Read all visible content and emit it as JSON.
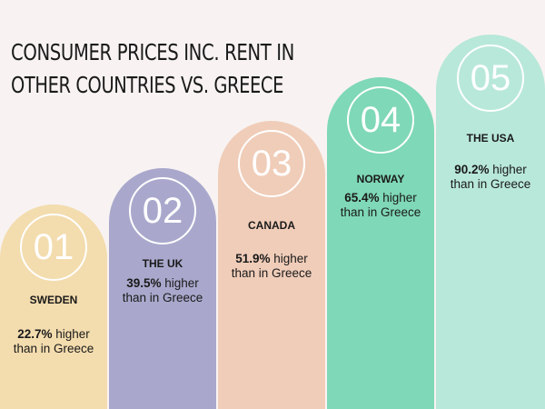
{
  "title": [
    "CONSUMER PRICES INC. RENT IN",
    "OTHER COUNTRIES VS. GREECE"
  ],
  "items": [
    {
      "number": "01",
      "country": "SWEDEN",
      "value": "22.7%",
      "text": [
        "higher",
        "than in Greece"
      ]
    },
    {
      "number": "02",
      "country": "THE UK",
      "value": "39.5%",
      "text": [
        "higher",
        "than in Greece"
      ]
    },
    {
      "number": "03",
      "country": "CANADA",
      "value": "51.9%",
      "text": [
        "higher",
        "than in Greece"
      ]
    },
    {
      "number": "04",
      "country": "NORWAY",
      "value": "65.4%",
      "text": [
        "higher",
        "than in Greece"
      ]
    },
    {
      "number": "05",
      "country": "THE USA",
      "value": "90.2%",
      "text": [
        "higher",
        "than in Greece"
      ]
    }
  ]
}
